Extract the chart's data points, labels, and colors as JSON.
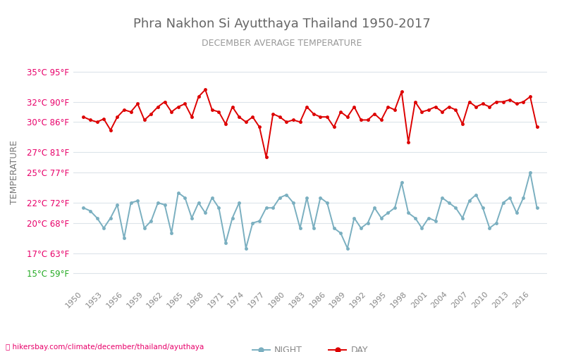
{
  "title": "Phra Nakhon Si Ayutthaya Thailand 1950-2017",
  "subtitle": "DECEMBER AVERAGE TEMPERATURE",
  "ylabel": "TEMPERATURE",
  "url_text": "hikersbay.com/climate/december/thailand/ayuthaya",
  "years": [
    1950,
    1951,
    1952,
    1953,
    1954,
    1955,
    1956,
    1957,
    1958,
    1959,
    1960,
    1961,
    1962,
    1963,
    1964,
    1965,
    1966,
    1967,
    1968,
    1969,
    1970,
    1971,
    1972,
    1973,
    1974,
    1975,
    1976,
    1977,
    1978,
    1979,
    1980,
    1981,
    1982,
    1983,
    1984,
    1985,
    1986,
    1987,
    1988,
    1989,
    1990,
    1991,
    1992,
    1993,
    1994,
    1995,
    1996,
    1997,
    1998,
    1999,
    2000,
    2001,
    2002,
    2003,
    2004,
    2005,
    2006,
    2007,
    2008,
    2009,
    2010,
    2011,
    2012,
    2013,
    2014,
    2015,
    2016,
    2017
  ],
  "day_temps": [
    30.5,
    30.2,
    30.0,
    30.3,
    29.2,
    30.5,
    31.2,
    31.0,
    31.8,
    30.2,
    30.8,
    31.5,
    32.0,
    31.0,
    31.5,
    31.8,
    30.5,
    32.5,
    33.2,
    31.2,
    31.0,
    29.8,
    31.5,
    30.5,
    30.0,
    30.5,
    29.5,
    26.5,
    30.8,
    30.5,
    30.0,
    30.2,
    30.0,
    31.5,
    30.8,
    30.5,
    30.5,
    29.5,
    31.0,
    30.5,
    31.5,
    30.2,
    30.2,
    30.8,
    30.2,
    31.5,
    31.2,
    33.0,
    28.0,
    32.0,
    31.0,
    31.2,
    31.5,
    31.0,
    31.5,
    31.2,
    29.8,
    32.0,
    31.5,
    31.8,
    31.5,
    32.0,
    32.0,
    32.2,
    31.8,
    32.0,
    32.5,
    29.5
  ],
  "night_temps": [
    21.5,
    21.2,
    20.5,
    19.5,
    20.5,
    21.8,
    18.5,
    22.0,
    22.2,
    19.5,
    20.2,
    22.0,
    21.8,
    19.0,
    23.0,
    22.5,
    20.5,
    22.0,
    21.0,
    22.5,
    21.5,
    18.0,
    20.5,
    22.0,
    17.5,
    20.0,
    20.2,
    21.5,
    21.5,
    22.5,
    22.8,
    22.0,
    19.5,
    22.5,
    19.5,
    22.5,
    22.0,
    19.5,
    19.0,
    17.5,
    20.5,
    19.5,
    20.0,
    21.5,
    20.5,
    21.0,
    21.5,
    24.0,
    21.0,
    20.5,
    19.5,
    20.5,
    20.2,
    22.5,
    22.0,
    21.5,
    20.5,
    22.2,
    22.8,
    21.5,
    19.5,
    20.0,
    22.0,
    22.5,
    21.0,
    22.5,
    25.0,
    21.5
  ],
  "day_color": "#dd0000",
  "night_color": "#7aafc0",
  "marker_size": 3.5,
  "line_width": 1.4,
  "yticks_c": [
    15,
    17,
    20,
    22,
    25,
    27,
    30,
    32,
    35
  ],
  "yticks_f": [
    59,
    63,
    68,
    72,
    77,
    81,
    86,
    90,
    95
  ],
  "ylim": [
    13.5,
    36.5
  ],
  "xlim": [
    1948.5,
    2018.5
  ],
  "background_color": "#ffffff",
  "grid_color": "#dce4ea",
  "tick_label_color": "#e8006a",
  "green_tick_color": "#22aa22",
  "ylabel_color": "#777777",
  "title_color": "#666666",
  "subtitle_color": "#999999",
  "xtick_color": "#888888",
  "legend_night": "NIGHT",
  "legend_day": "DAY",
  "xticks": [
    1950,
    1953,
    1956,
    1959,
    1962,
    1965,
    1968,
    1971,
    1974,
    1977,
    1980,
    1983,
    1986,
    1989,
    1992,
    1995,
    1998,
    2001,
    2004,
    2007,
    2010,
    2013,
    2016
  ]
}
